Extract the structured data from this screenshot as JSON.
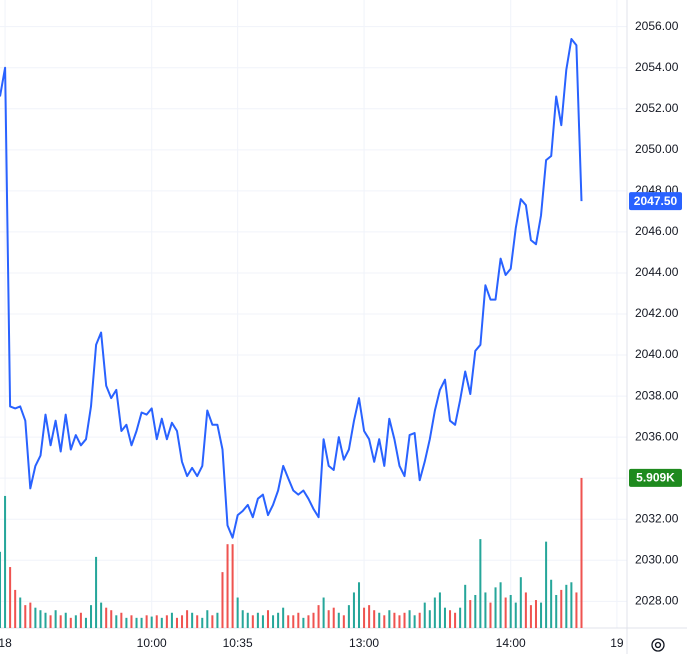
{
  "chart_data": {
    "type": "line",
    "xticks": [
      {
        "value": 1,
        "label": "18"
      },
      {
        "value": 30,
        "label": "10:00"
      },
      {
        "value": 47,
        "label": "10:35"
      },
      {
        "value": 72,
        "label": "13:00"
      },
      {
        "value": 101,
        "label": "14:00"
      },
      {
        "value": 122,
        "label": "19"
      }
    ],
    "xlim": [
      0,
      124
    ],
    "ylim": [
      2026.7,
      2057.3
    ],
    "yticks": [
      {
        "value": 2028,
        "label": "2028.00"
      },
      {
        "value": 2030,
        "label": "2030.00"
      },
      {
        "value": 2032,
        "label": "2032.00"
      },
      {
        "value": 2034,
        "label": "2034.00"
      },
      {
        "value": 2036,
        "label": "2036.00"
      },
      {
        "value": 2038,
        "label": "2038.00"
      },
      {
        "value": 2040,
        "label": "2040.00"
      },
      {
        "value": 2042,
        "label": "2042.00"
      },
      {
        "value": 2044,
        "label": "2044.00"
      },
      {
        "value": 2046,
        "label": "2046.00"
      },
      {
        "value": 2048,
        "label": "2048.00"
      },
      {
        "value": 2050,
        "label": "2050.00"
      },
      {
        "value": 2052,
        "label": "2052.00"
      },
      {
        "value": 2054,
        "label": "2054.00"
      },
      {
        "value": 2056,
        "label": "2056.00"
      }
    ],
    "grid": true,
    "series": [
      {
        "color": "#2962ff",
        "values": [
          2052.6,
          2054.0,
          2037.5,
          2037.4,
          2037.5,
          2036.8,
          2033.5,
          2034.6,
          2035.1,
          2037.1,
          2035.6,
          2036.8,
          2035.3,
          2037.1,
          2035.4,
          2036.1,
          2035.6,
          2035.9,
          2037.5,
          2040.5,
          2041.1,
          2038.5,
          2037.9,
          2038.3,
          2036.3,
          2036.6,
          2035.6,
          2036.3,
          2037.2,
          2037.1,
          2037.4,
          2035.9,
          2036.9,
          2035.9,
          2036.7,
          2036.3,
          2034.8,
          2034.1,
          2034.5,
          2034.1,
          2034.6,
          2037.3,
          2036.6,
          2036.6,
          2035.4,
          2031.7,
          2031.1,
          2032.2,
          2032.4,
          2032.7,
          2032.1,
          2033.0,
          2033.2,
          2032.2,
          2032.7,
          2033.4,
          2034.6,
          2034.0,
          2033.4,
          2033.2,
          2033.4,
          2033.0,
          2032.5,
          2032.1,
          2035.9,
          2034.6,
          2034.4,
          2036.0,
          2034.9,
          2035.4,
          2036.8,
          2037.9,
          2036.3,
          2035.9,
          2034.8,
          2035.9,
          2034.6,
          2036.9,
          2035.9,
          2034.6,
          2034.1,
          2036.1,
          2036.2,
          2033.9,
          2034.8,
          2035.9,
          2037.3,
          2038.3,
          2038.8,
          2036.8,
          2036.6,
          2037.8,
          2039.2,
          2038.1,
          2040.2,
          2040.5,
          2043.4,
          2042.7,
          2042.7,
          2044.7,
          2043.9,
          2044.2,
          2046.2,
          2047.6,
          2047.3,
          2045.6,
          2045.4,
          2046.8,
          2049.5,
          2049.7,
          2052.6,
          2051.2,
          2053.9,
          2055.4,
          2055.1,
          2047.5
        ]
      }
    ],
    "price_label": {
      "value": 2047.5,
      "label": "2047.50",
      "color": "#2962ff"
    },
    "volume": {
      "up_color": "#26a69a",
      "down_color": "#ef5350",
      "ylim": [
        0,
        6300
      ],
      "values": [
        3000,
        5200,
        2400,
        1500,
        1200,
        900,
        1000,
        800,
        700,
        600,
        500,
        700,
        500,
        600,
        400,
        500,
        600,
        400,
        900,
        2800,
        1000,
        800,
        700,
        500,
        600,
        400,
        500,
        400,
        400,
        500,
        450,
        500,
        400,
        500,
        600,
        400,
        500,
        700,
        600,
        500,
        400,
        700,
        500,
        600,
        2200,
        3300,
        3300,
        1200,
        700,
        600,
        500,
        600,
        500,
        700,
        500,
        600,
        800,
        500,
        500,
        600,
        400,
        500,
        600,
        900,
        1200,
        700,
        800,
        600,
        500,
        900,
        1400,
        1800,
        800,
        900,
        700,
        600,
        500,
        700,
        600,
        500,
        600,
        700,
        500,
        600,
        1000,
        700,
        1200,
        1400,
        800,
        700,
        600,
        800,
        1700,
        1100,
        1300,
        3500,
        1400,
        1000,
        1600,
        1800,
        1200,
        1300,
        1000,
        2000,
        1400,
        900,
        1100,
        1000,
        3400,
        1900,
        1300,
        1500,
        1700,
        1800,
        1400,
        5909
      ],
      "label": {
        "value": 5909,
        "label": "5.909K",
        "color": "#1e8a1e"
      }
    }
  }
}
